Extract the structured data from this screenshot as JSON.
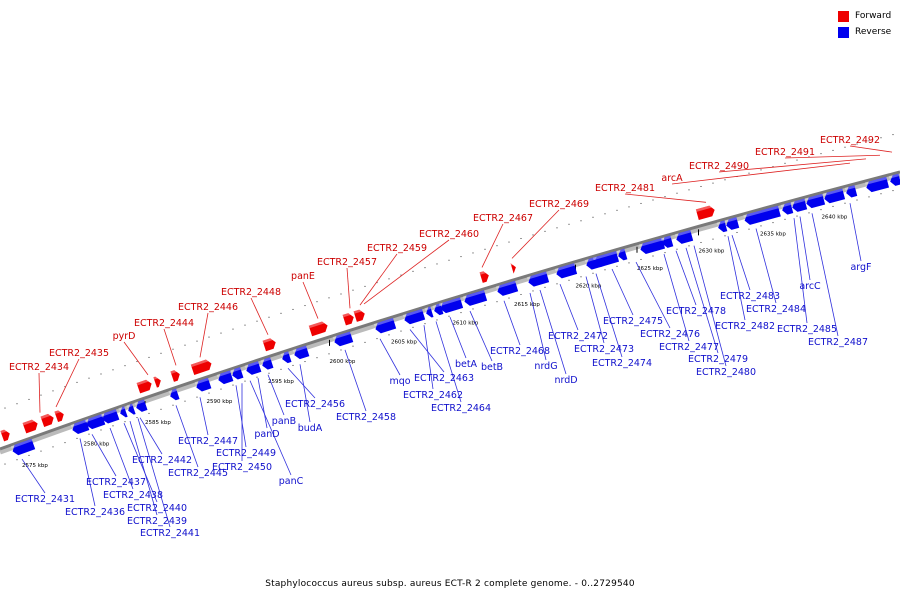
{
  "title": "Staphylococcus aureus subsp. aureus ECT-R 2 complete genome. - 0..2729540",
  "legend": [
    {
      "label": "Forward",
      "color": "#ee0000"
    },
    {
      "label": "Reverse",
      "color": "#0000ee"
    }
  ],
  "colors": {
    "forward": "#ee0000",
    "reverse": "#0000ee",
    "backbone": "#777777",
    "label_forward": "#cc0000",
    "label_reverse": "#1010cc"
  },
  "scale_labels": [
    "2575 kbp",
    "2580 kbp",
    "2585 kbp",
    "2590 kbp",
    "2595 kbp",
    "2600 kbp",
    "2605 kbp",
    "2610 kbp",
    "2615 kbp",
    "2620 kbp",
    "2625 kbp",
    "2630 kbp",
    "2635 kbp",
    "2640 kbp"
  ],
  "forward_labels": [
    "ECTR2_2434",
    "ECTR2_2435",
    "pyrD",
    "ECTR2_2444",
    "ECTR2_2446",
    "ECTR2_2448",
    "panE",
    "ECTR2_2457",
    "ECTR2_2459",
    "ECTR2_2460",
    "ECTR2_2467",
    "ECTR2_2469",
    "ECTR2_2481",
    "arcA",
    "ECTR2_2490",
    "ECTR2_2491",
    "ECTR2_2492"
  ],
  "reverse_labels": [
    "ECTR2_2431",
    "ECTR2_2436",
    "ECTR2_2437",
    "ECTR2_2438",
    "ECTR2_2440",
    "ECTR2_2439",
    "ECTR2_2441",
    "ECTR2_2442",
    "ECTR2_2445",
    "ECTR2_2447",
    "ECTR2_2449",
    "ECTR2_2450",
    "panC",
    "panD",
    "panB",
    "budA",
    "ECTR2_2456",
    "ECTR2_2458",
    "mqo",
    "ECTR2_2463",
    "ECTR2_2462",
    "ECTR2_2464",
    "betA",
    "betB",
    "ECTR2_2468",
    "nrdG",
    "nrdD",
    "ECTR2_2472",
    "ECTR2_2473",
    "ECTR2_2474",
    "ECTR2_2475",
    "ECTR2_2476",
    "ECTR2_2477",
    "ECTR2_2478",
    "ECTR2_2479",
    "ECTR2_2480",
    "ECTR2_2482",
    "ECTR2_2483",
    "ECTR2_2484",
    "ECTR2_2485",
    "ECTR2_2487",
    "arcC",
    "argF"
  ]
}
